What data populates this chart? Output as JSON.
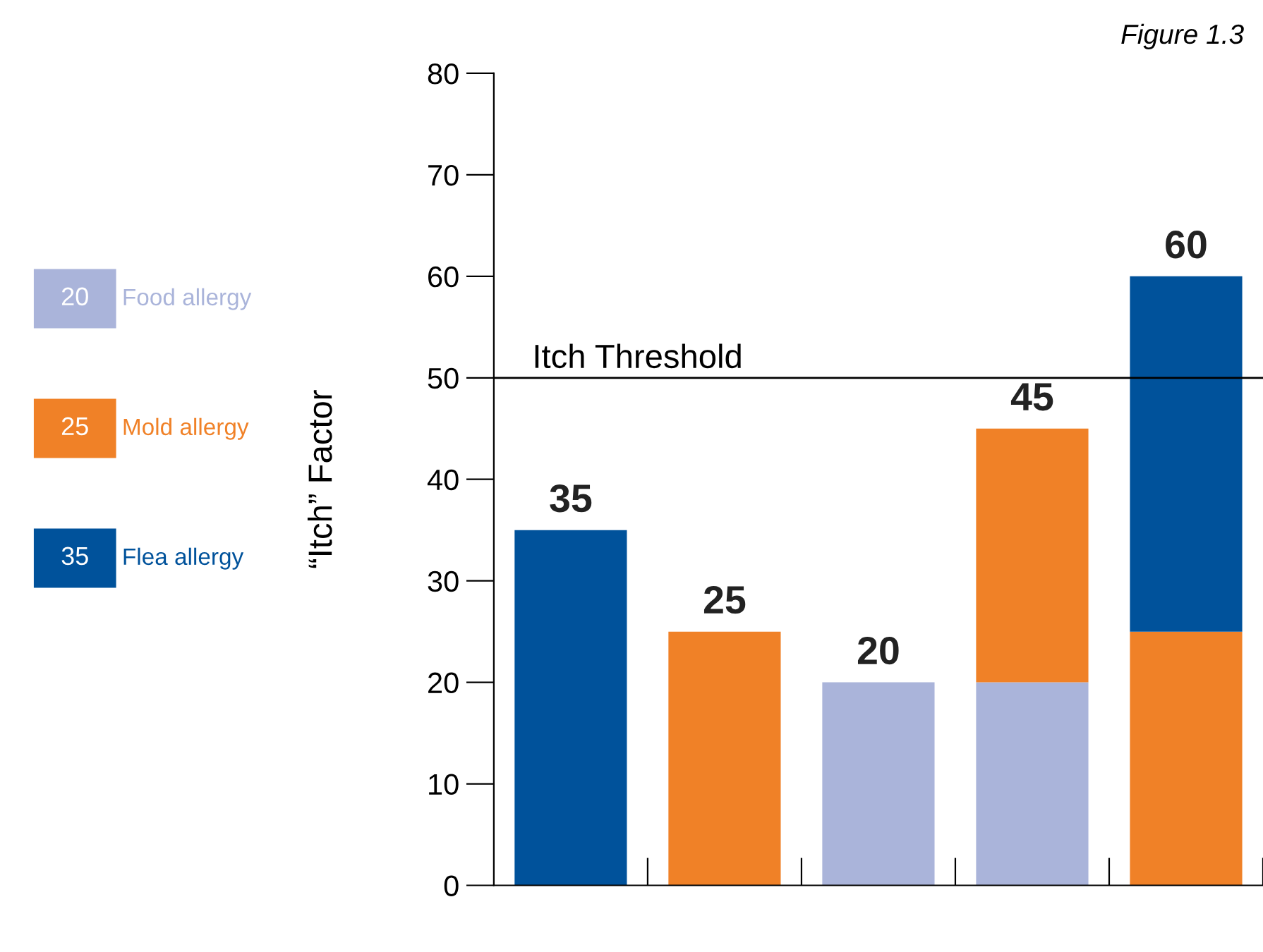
{
  "chart_data": {
    "type": "bar",
    "title": "Figure 1.3",
    "ylabel": "“Itch” Factor",
    "stacked": true,
    "categories": [
      null,
      null,
      null,
      null,
      null
    ],
    "series": [
      {
        "name": "Food allergy",
        "color": "#aab4da",
        "values": [
          null,
          null,
          20,
          20,
          null
        ]
      },
      {
        "name": "Mold allergy",
        "color": "#f08127",
        "values": [
          null,
          25,
          null,
          25,
          25
        ]
      },
      {
        "name": "Flea allergy",
        "color": "#00529b",
        "values": [
          35,
          null,
          null,
          null,
          35
        ]
      }
    ],
    "totals": [
      "35",
      "25",
      "20",
      "45",
      "60"
    ],
    "annotations": [
      "20",
      "25",
      "35"
    ],
    "ylim": [
      0,
      80
    ],
    "yticks": [
      0,
      10,
      20,
      30,
      40,
      50,
      60,
      70,
      80
    ],
    "ref_lines": [
      {
        "axis": "y",
        "value": 50,
        "label": "Itch Threshold",
        "color": "#000000"
      }
    ],
    "grid": false,
    "legend": "left"
  }
}
